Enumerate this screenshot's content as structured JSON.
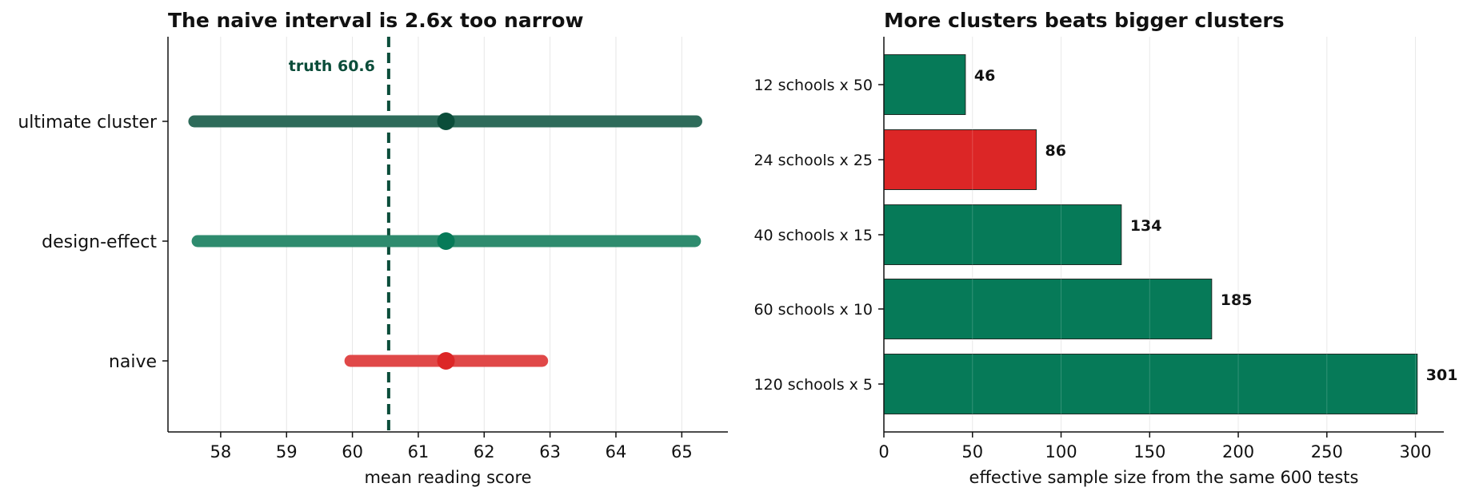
{
  "colors": {
    "dark_green": "#0b4d3a",
    "green": "#067a58",
    "red": "#dc2626",
    "grid": "#e6e6e6",
    "axis": "#111111"
  },
  "chart_data": [
    {
      "type": "interval",
      "title": "The naive interval is 2.6x too narrow",
      "xlabel": "mean reading score",
      "ylabel": "",
      "xlim": [
        57.2,
        65.7
      ],
      "xticks": [
        58,
        59,
        60,
        61,
        62,
        63,
        64,
        65
      ],
      "grid": "vertical",
      "reference_line": {
        "value": 60.55,
        "label": "truth 60.6"
      },
      "series": [
        {
          "category": "ultimate cluster",
          "estimate": 61.42,
          "low": 57.6,
          "high": 65.22,
          "color": "#2e6b5a",
          "point_color": "#0b4d3a"
        },
        {
          "category": "design-effect",
          "estimate": 61.42,
          "low": 57.65,
          "high": 65.2,
          "color": "#2e8b6e",
          "point_color": "#067a58"
        },
        {
          "category": "naive",
          "estimate": 61.42,
          "low": 59.97,
          "high": 62.88,
          "color": "#e04848",
          "point_color": "#dc2626"
        }
      ]
    },
    {
      "type": "bar",
      "orientation": "horizontal",
      "title": "More clusters beats bigger clusters",
      "xlabel": "effective sample size from the same 600 tests",
      "ylabel": "",
      "xlim": [
        0,
        316
      ],
      "xticks": [
        0,
        50,
        100,
        150,
        200,
        250,
        300
      ],
      "grid": "vertical",
      "categories": [
        "12 schools x 50",
        "24 schools x 25",
        "40 schools x 15",
        "60 schools x 10",
        "120 schools x 5"
      ],
      "values": [
        46,
        86,
        134,
        185,
        301
      ],
      "value_labels": [
        "46",
        "86",
        "134",
        "185",
        "301"
      ],
      "bar_colors": [
        "#067a58",
        "#dc2626",
        "#067a58",
        "#067a58",
        "#067a58"
      ]
    }
  ]
}
